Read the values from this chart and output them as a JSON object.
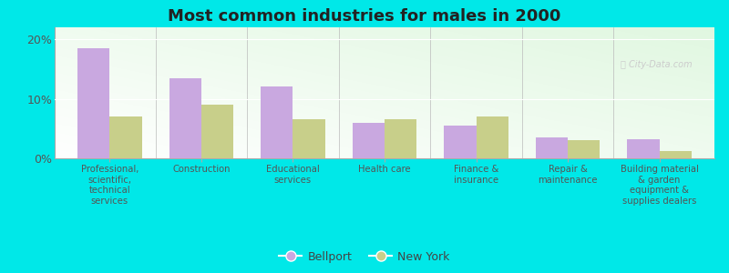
{
  "title": "Most common industries for males in 2000",
  "categories": [
    "Professional,\nscientific,\ntechnical\nservices",
    "Construction",
    "Educational\nservices",
    "Health care",
    "Finance &\ninsurance",
    "Repair &\nmaintenance",
    "Building material\n& garden\nequipment &\nsupplies dealers"
  ],
  "bellport_values": [
    18.5,
    13.5,
    12.0,
    6.0,
    5.5,
    3.5,
    3.2
  ],
  "newyork_values": [
    7.0,
    9.0,
    6.5,
    6.5,
    7.0,
    3.0,
    1.2
  ],
  "bellport_color": "#c9a8e0",
  "newyork_color": "#c8cf8a",
  "ylim": [
    0,
    22
  ],
  "yticks": [
    0,
    10,
    20
  ],
  "ytick_labels": [
    "0%",
    "10%",
    "20%"
  ],
  "outer_background": "#00e8e8",
  "bar_width": 0.35,
  "legend_bellport": "Bellport",
  "legend_newyork": "New York"
}
